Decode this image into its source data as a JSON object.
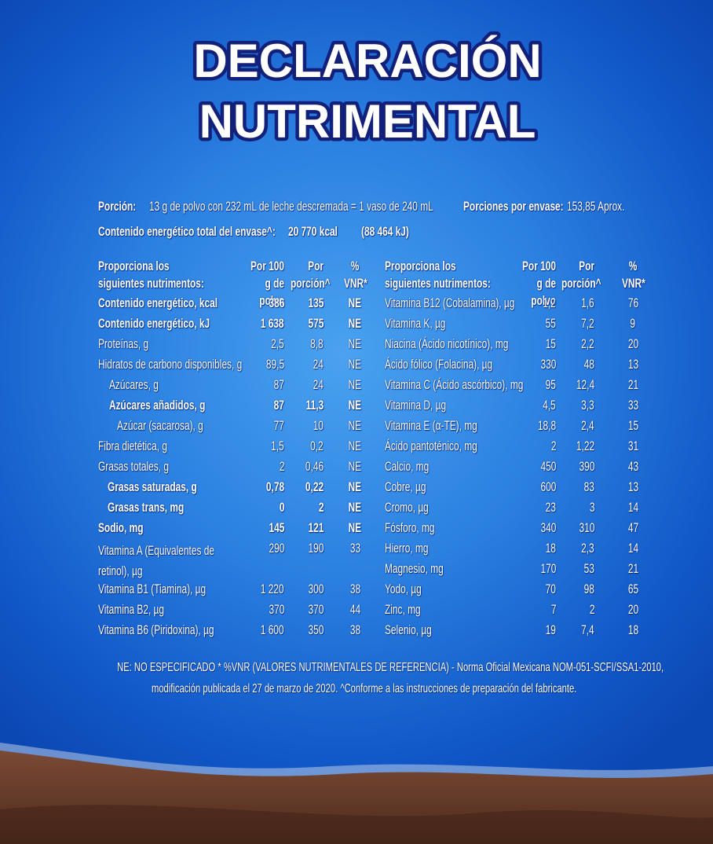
{
  "title": [
    "DECLARACIÓN",
    "NUTRIMENTAL"
  ],
  "serving": {
    "label": "Porción:",
    "text": "13 g de polvo con 232 mL de leche descremada = 1 vaso de 240 mL"
  },
  "servings_per_pack": {
    "label": "Porciones por envase:",
    "text": "153,85 Aprox."
  },
  "total_energy": {
    "label": "Contenido energético total del envase^:",
    "text": "20 770 kcal",
    "text2": "(88 464 kJ)"
  },
  "headers": [
    "Proporciona los siguientes nutrimentos:",
    "Por 100 g de polvo",
    "Por porción^",
    "% VNR*"
  ],
  "left_rows": [
    [
      "Contenido energético, kcal",
      "386",
      "135",
      "NE"
    ],
    [
      "Contenido energético, kJ",
      "1 638",
      "575",
      "NE"
    ],
    [
      "Proteínas, g",
      "2,5",
      "8,8",
      "NE"
    ],
    [
      "Hidratos de carbono disponibles, g",
      "89,5",
      "24",
      "NE"
    ],
    [
      "Azúcares, g",
      "87",
      "24",
      "NE"
    ],
    [
      "Azúcares añadidos, g",
      "87",
      "11,3",
      "NE"
    ],
    [
      "Azúcar (sacarosa), g",
      "77",
      "10",
      "NE"
    ],
    [
      "Fibra dietética, g",
      "1,5",
      "0,2",
      "NE"
    ],
    [
      "Grasas totales, g",
      "2",
      "0,46",
      "NE"
    ],
    [
      "Grasas saturadas, g",
      "0,78",
      "0,22",
      "NE"
    ],
    [
      "Grasas trans, mg",
      "0",
      "2",
      "NE"
    ],
    [
      "Sodio, mg",
      "145",
      "121",
      "NE"
    ],
    [
      "Vitamina A (Equivalentes de retinol), µg",
      "290",
      "190",
      "33"
    ],
    [
      "Vitamina B1 (Tiamina), µg",
      "1 220",
      "300",
      "38"
    ],
    [
      "Vitamina B2, µg",
      "370",
      "370",
      "44"
    ],
    [
      "Vitamina B6 (Piridoxina), µg",
      "1 600",
      "350",
      "38"
    ]
  ],
  "right_rows": [
    [
      "Vitamina B12 (Cobalamina), µg",
      "1,2",
      "1,6",
      "76"
    ],
    [
      "Vitamina K, µg",
      "55",
      "7,2",
      "9"
    ],
    [
      "Niacina (Ácido nicotínico), mg",
      "15",
      "2,2",
      "20"
    ],
    [
      "Ácido fólico (Folacina), µg",
      "330",
      "48",
      "13"
    ],
    [
      "Vitamina C (Ácido ascórbico), mg",
      "95",
      "12,4",
      "21"
    ],
    [
      "Vitamina D, µg",
      "4,5",
      "3,3",
      "33"
    ],
    [
      "Vitamina E (α-TE), mg",
      "18,8",
      "2,4",
      "15"
    ],
    [
      "Ácido pantoténico, mg",
      "2",
      "1,22",
      "31"
    ],
    [
      "Calcio, mg",
      "450",
      "390",
      "43"
    ],
    [
      "Cobre, µg",
      "600",
      "83",
      "13"
    ],
    [
      "Cromo, µg",
      "23",
      "3",
      "14"
    ],
    [
      "Fósforo, mg",
      "340",
      "310",
      "47"
    ],
    [
      "Hierro, mg",
      "18",
      "2,3",
      "14"
    ],
    [
      "Magnesio, mg",
      "170",
      "53",
      "21"
    ],
    [
      "Yodo, µg",
      "70",
      "98",
      "65"
    ],
    [
      "Zinc, mg",
      "7",
      "2",
      "20"
    ],
    [
      "Selenio, µg",
      "19",
      "7,4",
      "18"
    ]
  ],
  "footnote": [
    "NE: NO ESPECIFICADO   * %VNR (VALORES NUTRIMENTALES DE REFERENCIA) - Norma Oficial Mexicana NOM-051-SCFI/SSA1-2010,",
    "modificación publicada el 27 de marzo de 2020. ^Conforme a las instrucciones de preparación del fabricante."
  ]
}
